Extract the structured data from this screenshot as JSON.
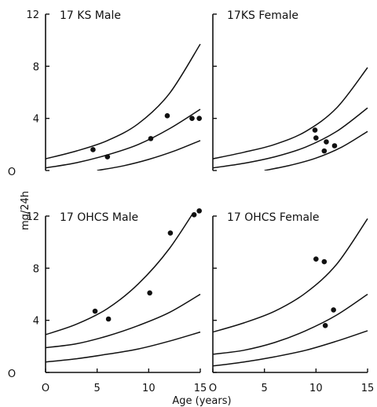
{
  "chart_data": [
    {
      "type": "line",
      "title": "17 KS Male",
      "xlim": [
        0,
        15
      ],
      "ylim": [
        0,
        12
      ],
      "y_ticks": [
        "12",
        "8",
        "4",
        "0"
      ],
      "curves": [
        {
          "x": [
            0,
            3,
            6,
            9,
            12,
            15
          ],
          "y": [
            0.9,
            1.5,
            2.3,
            3.6,
            5.9,
            9.7
          ]
        },
        {
          "x": [
            0,
            3,
            6,
            9,
            12,
            15
          ],
          "y": [
            0.2,
            0.6,
            1.2,
            2.0,
            3.2,
            4.7
          ]
        },
        {
          "x": [
            5,
            7.5,
            10,
            12.5,
            15
          ],
          "y": [
            0.0,
            0.35,
            0.85,
            1.5,
            2.3
          ]
        }
      ],
      "points": [
        {
          "x": 4.6,
          "y": 1.6
        },
        {
          "x": 6.0,
          "y": 1.05
        },
        {
          "x": 10.2,
          "y": 2.45
        },
        {
          "x": 11.8,
          "y": 4.2
        },
        {
          "x": 14.2,
          "y": 4.0
        },
        {
          "x": 14.9,
          "y": 4.0
        }
      ]
    },
    {
      "type": "line",
      "title": "17KS  Female",
      "xlim": [
        0,
        15
      ],
      "ylim": [
        0,
        12
      ],
      "curves": [
        {
          "x": [
            0,
            3,
            6,
            9,
            12,
            15
          ],
          "y": [
            0.9,
            1.4,
            2.0,
            3.0,
            4.8,
            7.9
          ]
        },
        {
          "x": [
            0,
            3,
            6,
            9,
            12,
            15
          ],
          "y": [
            0.2,
            0.55,
            1.05,
            1.8,
            3.0,
            4.8
          ]
        },
        {
          "x": [
            5,
            7.5,
            10,
            12.5,
            15
          ],
          "y": [
            0.0,
            0.4,
            0.95,
            1.8,
            3.0
          ]
        }
      ],
      "points": [
        {
          "x": 9.9,
          "y": 3.1
        },
        {
          "x": 10.0,
          "y": 2.5
        },
        {
          "x": 11.0,
          "y": 2.2
        },
        {
          "x": 10.8,
          "y": 1.5
        },
        {
          "x": 11.8,
          "y": 1.9
        }
      ]
    },
    {
      "type": "line",
      "title": "17 OHCS  Male",
      "xlim": [
        0,
        15
      ],
      "ylim": [
        0,
        12
      ],
      "y_ticks": [
        "12",
        "8",
        "4",
        "0"
      ],
      "curves": [
        {
          "x": [
            0,
            3,
            6,
            9,
            12,
            15
          ],
          "y": [
            2.9,
            3.7,
            4.9,
            6.8,
            9.5,
            13.1
          ]
        },
        {
          "x": [
            0,
            3,
            6,
            9,
            12,
            15
          ],
          "y": [
            1.9,
            2.2,
            2.8,
            3.6,
            4.6,
            6.0
          ]
        },
        {
          "x": [
            0,
            3,
            6,
            9,
            12,
            15
          ],
          "y": [
            0.8,
            1.05,
            1.4,
            1.8,
            2.4,
            3.1
          ]
        }
      ],
      "points": [
        {
          "x": 4.8,
          "y": 4.7
        },
        {
          "x": 6.1,
          "y": 4.1
        },
        {
          "x": 10.1,
          "y": 6.1
        },
        {
          "x": 12.1,
          "y": 10.7
        },
        {
          "x": 14.4,
          "y": 12.1
        },
        {
          "x": 14.9,
          "y": 12.4
        }
      ]
    },
    {
      "type": "line",
      "title": "17  OHCS  Female",
      "xlim": [
        0,
        15
      ],
      "ylim": [
        0,
        12
      ],
      "curves": [
        {
          "x": [
            0,
            3,
            6,
            9,
            12,
            15
          ],
          "y": [
            3.1,
            3.8,
            4.7,
            6.1,
            8.3,
            11.8
          ]
        },
        {
          "x": [
            0,
            3,
            6,
            9,
            12,
            15
          ],
          "y": [
            1.4,
            1.7,
            2.3,
            3.2,
            4.4,
            6.0
          ]
        },
        {
          "x": [
            0,
            3,
            6,
            9,
            12,
            15
          ],
          "y": [
            0.5,
            0.8,
            1.2,
            1.7,
            2.4,
            3.2
          ]
        }
      ],
      "points": [
        {
          "x": 10.0,
          "y": 8.7
        },
        {
          "x": 10.8,
          "y": 8.5
        },
        {
          "x": 11.7,
          "y": 4.8
        },
        {
          "x": 10.9,
          "y": 3.6
        }
      ]
    }
  ],
  "axes": {
    "ylabel": "mg/24h",
    "xlabel": "Age (years)",
    "x_ticks_left": [
      "O",
      "5",
      "10",
      "15"
    ],
    "x_ticks_right": [
      "O",
      "5",
      "10",
      "15"
    ],
    "y_origin_marker": "O"
  }
}
